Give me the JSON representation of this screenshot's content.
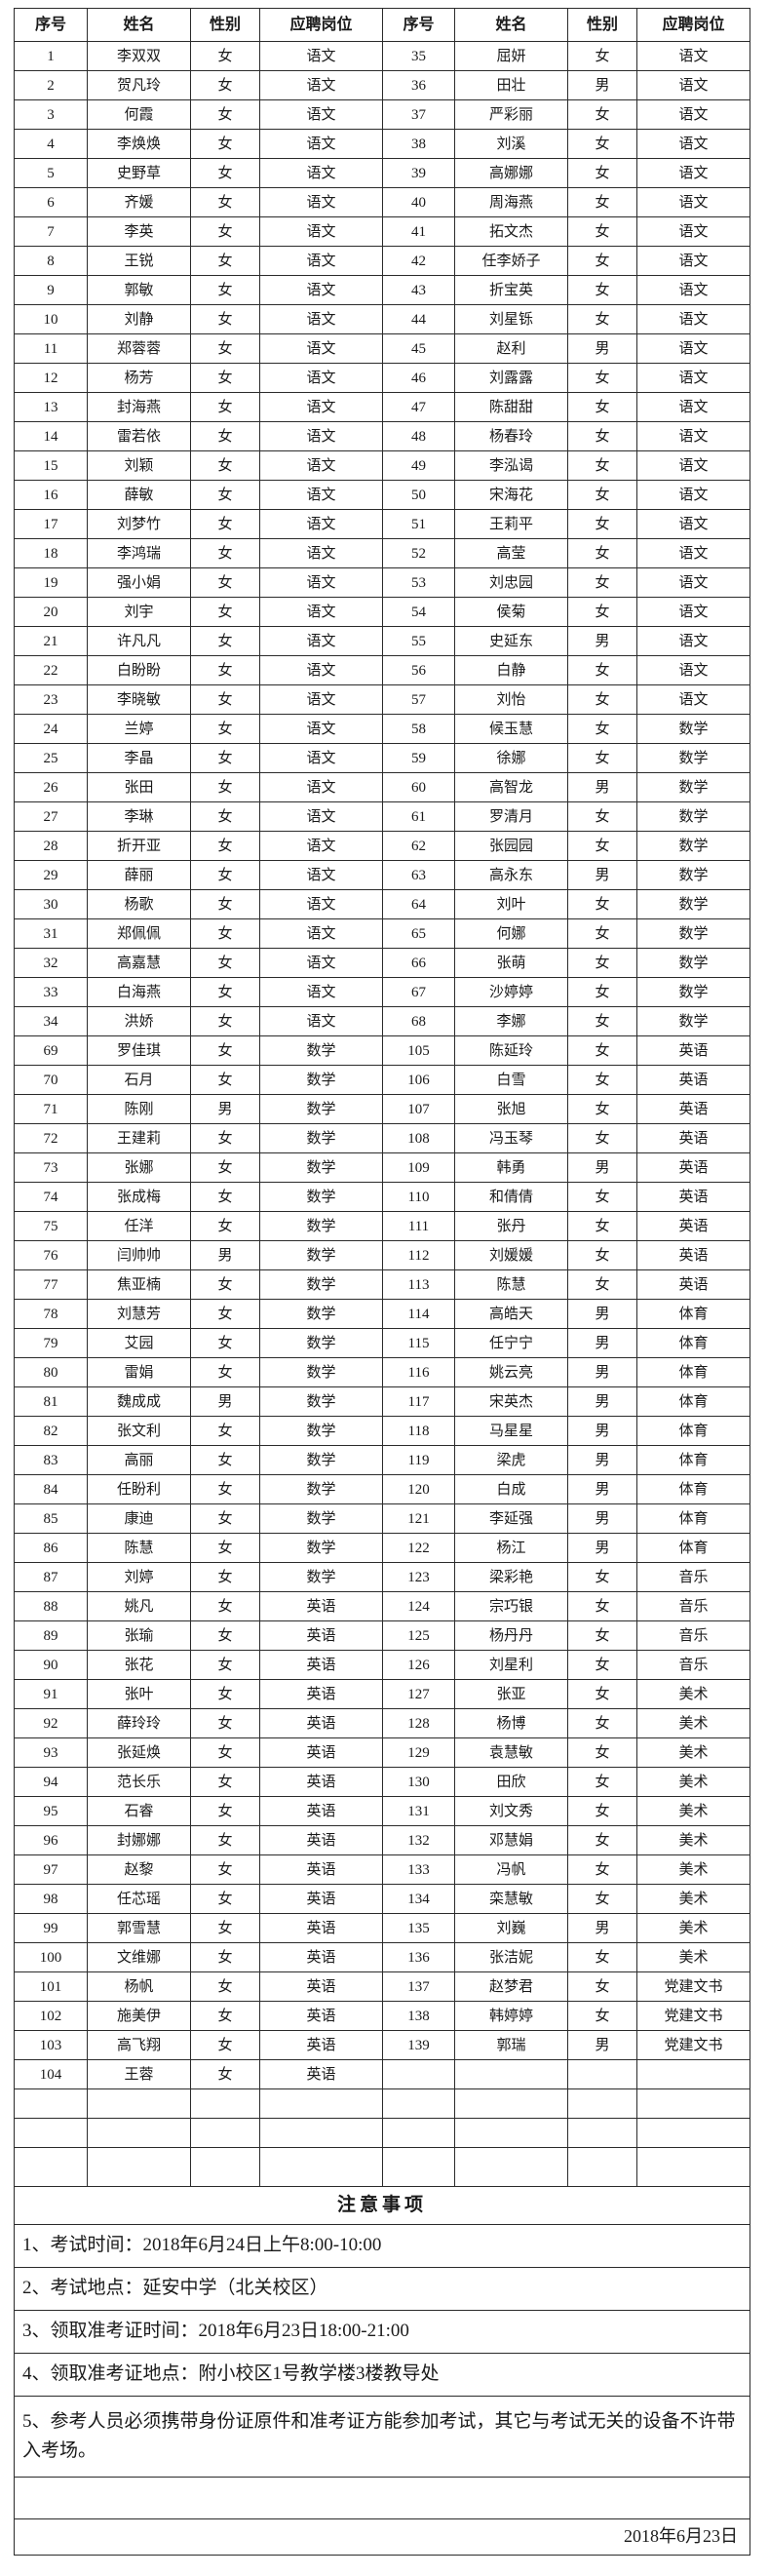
{
  "table": {
    "headers": [
      "序号",
      "姓名",
      "性别",
      "应聘岗位",
      "序号",
      "姓名",
      "性别",
      "应聘岗位"
    ],
    "rows": [
      [
        "1",
        "李双双",
        "女",
        "语文",
        "35",
        "屈妍",
        "女",
        "语文"
      ],
      [
        "2",
        "贺凡玲",
        "女",
        "语文",
        "36",
        "田壮",
        "男",
        "语文"
      ],
      [
        "3",
        "何霞",
        "女",
        "语文",
        "37",
        "严彩丽",
        "女",
        "语文"
      ],
      [
        "4",
        "李焕焕",
        "女",
        "语文",
        "38",
        "刘溪",
        "女",
        "语文"
      ],
      [
        "5",
        "史野草",
        "女",
        "语文",
        "39",
        "高娜娜",
        "女",
        "语文"
      ],
      [
        "6",
        "齐媛",
        "女",
        "语文",
        "40",
        "周海燕",
        "女",
        "语文"
      ],
      [
        "7",
        "李英",
        "女",
        "语文",
        "41",
        "拓文杰",
        "女",
        "语文"
      ],
      [
        "8",
        "王锐",
        "女",
        "语文",
        "42",
        "任李娇子",
        "女",
        "语文"
      ],
      [
        "9",
        "郭敏",
        "女",
        "语文",
        "43",
        "折宝英",
        "女",
        "语文"
      ],
      [
        "10",
        "刘静",
        "女",
        "语文",
        "44",
        "刘星铄",
        "女",
        "语文"
      ],
      [
        "11",
        "郑蓉蓉",
        "女",
        "语文",
        "45",
        "赵利",
        "男",
        "语文"
      ],
      [
        "12",
        "杨芳",
        "女",
        "语文",
        "46",
        "刘露露",
        "女",
        "语文"
      ],
      [
        "13",
        "封海燕",
        "女",
        "语文",
        "47",
        "陈甜甜",
        "女",
        "语文"
      ],
      [
        "14",
        "雷若依",
        "女",
        "语文",
        "48",
        "杨春玲",
        "女",
        "语文"
      ],
      [
        "15",
        "刘颖",
        "女",
        "语文",
        "49",
        "李泓谒",
        "女",
        "语文"
      ],
      [
        "16",
        "薛敏",
        "女",
        "语文",
        "50",
        "宋海花",
        "女",
        "语文"
      ],
      [
        "17",
        "刘梦竹",
        "女",
        "语文",
        "51",
        "王莉平",
        "女",
        "语文"
      ],
      [
        "18",
        "李鸿瑞",
        "女",
        "语文",
        "52",
        "高莹",
        "女",
        "语文"
      ],
      [
        "19",
        "强小娟",
        "女",
        "语文",
        "53",
        "刘忠园",
        "女",
        "语文"
      ],
      [
        "20",
        "刘宇",
        "女",
        "语文",
        "54",
        "侯菊",
        "女",
        "语文"
      ],
      [
        "21",
        "许凡凡",
        "女",
        "语文",
        "55",
        "史延东",
        "男",
        "语文"
      ],
      [
        "22",
        "白盼盼",
        "女",
        "语文",
        "56",
        "白静",
        "女",
        "语文"
      ],
      [
        "23",
        "李晓敏",
        "女",
        "语文",
        "57",
        "刘怡",
        "女",
        "语文"
      ],
      [
        "24",
        "兰婷",
        "女",
        "语文",
        "58",
        "候玉慧",
        "女",
        "数学"
      ],
      [
        "25",
        "李晶",
        "女",
        "语文",
        "59",
        "徐娜",
        "女",
        "数学"
      ],
      [
        "26",
        "张田",
        "女",
        "语文",
        "60",
        "高智龙",
        "男",
        "数学"
      ],
      [
        "27",
        "李琳",
        "女",
        "语文",
        "61",
        "罗清月",
        "女",
        "数学"
      ],
      [
        "28",
        "折开亚",
        "女",
        "语文",
        "62",
        "张园园",
        "女",
        "数学"
      ],
      [
        "29",
        "薛丽",
        "女",
        "语文",
        "63",
        "高永东",
        "男",
        "数学"
      ],
      [
        "30",
        "杨歌",
        "女",
        "语文",
        "64",
        "刘叶",
        "女",
        "数学"
      ],
      [
        "31",
        "郑佩佩",
        "女",
        "语文",
        "65",
        "何娜",
        "女",
        "数学"
      ],
      [
        "32",
        "高嘉慧",
        "女",
        "语文",
        "66",
        "张萌",
        "女",
        "数学"
      ],
      [
        "33",
        "白海燕",
        "女",
        "语文",
        "67",
        "沙婷婷",
        "女",
        "数学"
      ],
      [
        "34",
        "洪娇",
        "女",
        "语文",
        "68",
        "李娜",
        "女",
        "数学"
      ],
      [
        "69",
        "罗佳琪",
        "女",
        "数学",
        "105",
        "陈延玲",
        "女",
        "英语"
      ],
      [
        "70",
        "石月",
        "女",
        "数学",
        "106",
        "白雪",
        "女",
        "英语"
      ],
      [
        "71",
        "陈刚",
        "男",
        "数学",
        "107",
        "张旭",
        "女",
        "英语"
      ],
      [
        "72",
        "王建莉",
        "女",
        "数学",
        "108",
        "冯玉琴",
        "女",
        "英语"
      ],
      [
        "73",
        "张娜",
        "女",
        "数学",
        "109",
        "韩勇",
        "男",
        "英语"
      ],
      [
        "74",
        "张成梅",
        "女",
        "数学",
        "110",
        "和倩倩",
        "女",
        "英语"
      ],
      [
        "75",
        "任洋",
        "女",
        "数学",
        "111",
        "张丹",
        "女",
        "英语"
      ],
      [
        "76",
        "闫帅帅",
        "男",
        "数学",
        "112",
        "刘媛媛",
        "女",
        "英语"
      ],
      [
        "77",
        "焦亚楠",
        "女",
        "数学",
        "113",
        "陈慧",
        "女",
        "英语"
      ],
      [
        "78",
        "刘慧芳",
        "女",
        "数学",
        "114",
        "高皓天",
        "男",
        "体育"
      ],
      [
        "79",
        "艾园",
        "女",
        "数学",
        "115",
        "任宁宁",
        "男",
        "体育"
      ],
      [
        "80",
        "雷娟",
        "女",
        "数学",
        "116",
        "姚云亮",
        "男",
        "体育"
      ],
      [
        "81",
        "魏成成",
        "男",
        "数学",
        "117",
        "宋英杰",
        "男",
        "体育"
      ],
      [
        "82",
        "张文利",
        "女",
        "数学",
        "118",
        "马星星",
        "男",
        "体育"
      ],
      [
        "83",
        "高丽",
        "女",
        "数学",
        "119",
        "梁虎",
        "男",
        "体育"
      ],
      [
        "84",
        "任盼利",
        "女",
        "数学",
        "120",
        "白成",
        "男",
        "体育"
      ],
      [
        "85",
        "康迪",
        "女",
        "数学",
        "121",
        "李延强",
        "男",
        "体育"
      ],
      [
        "86",
        "陈慧",
        "女",
        "数学",
        "122",
        "杨江",
        "男",
        "体育"
      ],
      [
        "87",
        "刘婷",
        "女",
        "数学",
        "123",
        "梁彩艳",
        "女",
        "音乐"
      ],
      [
        "88",
        "姚凡",
        "女",
        "英语",
        "124",
        "宗巧银",
        "女",
        "音乐"
      ],
      [
        "89",
        "张瑜",
        "女",
        "英语",
        "125",
        "杨丹丹",
        "女",
        "音乐"
      ],
      [
        "90",
        "张花",
        "女",
        "英语",
        "126",
        "刘星利",
        "女",
        "音乐"
      ],
      [
        "91",
        "张叶",
        "女",
        "英语",
        "127",
        "张亚",
        "女",
        "美术"
      ],
      [
        "92",
        "薛玲玲",
        "女",
        "英语",
        "128",
        "杨博",
        "女",
        "美术"
      ],
      [
        "93",
        "张延焕",
        "女",
        "英语",
        "129",
        "袁慧敏",
        "女",
        "美术"
      ],
      [
        "94",
        "范长乐",
        "女",
        "英语",
        "130",
        "田欣",
        "女",
        "美术"
      ],
      [
        "95",
        "石睿",
        "女",
        "英语",
        "131",
        "刘文秀",
        "女",
        "美术"
      ],
      [
        "96",
        "封娜娜",
        "女",
        "英语",
        "132",
        "邓慧娟",
        "女",
        "美术"
      ],
      [
        "97",
        "赵黎",
        "女",
        "英语",
        "133",
        "冯帆",
        "女",
        "美术"
      ],
      [
        "98",
        "任芯瑶",
        "女",
        "英语",
        "134",
        "栾慧敏",
        "女",
        "美术"
      ],
      [
        "99",
        "郭雪慧",
        "女",
        "英语",
        "135",
        "刘巍",
        "男",
        "美术"
      ],
      [
        "100",
        "文维娜",
        "女",
        "英语",
        "136",
        "张洁妮",
        "女",
        "美术"
      ],
      [
        "101",
        "杨帆",
        "女",
        "英语",
        "137",
        "赵梦君",
        "女",
        "党建文书"
      ],
      [
        "102",
        "施美伊",
        "女",
        "英语",
        "138",
        "韩婷婷",
        "女",
        "党建文书"
      ],
      [
        "103",
        "高飞翔",
        "女",
        "英语",
        "139",
        "郭瑞",
        "男",
        "党建文书"
      ],
      [
        "104",
        "王蓉",
        "女",
        "英语",
        "",
        "",
        "",
        ""
      ]
    ],
    "blank_rows": 3
  },
  "notices": {
    "title": "注意事项",
    "items": [
      "1、考试时间：2018年6月24日上午8:00-10:00",
      "2、考试地点：延安中学（北关校区）",
      "3、领取准考证时间：2018年6月23日18:00-21:00",
      "4、领取准考证地点：附小校区1号教学楼3楼教导处",
      "5、参考人员必须携带身份证原件和准考证方能参加考试，其它与考试无关的设备不许带入考场。"
    ],
    "date": "2018年6月23日"
  },
  "colors": {
    "text": "#1a1a1a",
    "border": "#2b2b2b",
    "background": "#ffffff"
  }
}
